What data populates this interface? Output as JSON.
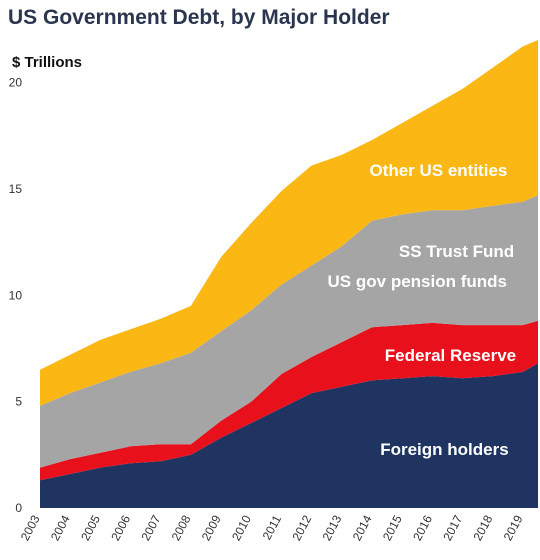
{
  "chart_data": {
    "type": "area",
    "stacked": true,
    "title": "US Government Debt, by Major Holder",
    "ylabel": "$ Trillions",
    "xlabel": "",
    "xlim": [
      2003,
      2019.5
    ],
    "ylim": [
      0,
      22
    ],
    "yticks": [
      0,
      5,
      10,
      15,
      20
    ],
    "xticks": [
      2003,
      2004,
      2005,
      2006,
      2007,
      2008,
      2009,
      2010,
      2011,
      2012,
      2013,
      2014,
      2015,
      2016,
      2017,
      2018,
      2019
    ],
    "grid": false,
    "legend": "none",
    "x": [
      2003,
      2004,
      2005,
      2006,
      2007,
      2008,
      2009,
      2010,
      2011,
      2012,
      2013,
      2014,
      2015,
      2016,
      2017,
      2018,
      2019,
      2019.5
    ],
    "series": [
      {
        "name": "Foreign holders",
        "color": "#1f3461",
        "values": [
          1.3,
          1.6,
          1.9,
          2.1,
          2.2,
          2.5,
          3.3,
          4.0,
          4.7,
          5.4,
          5.7,
          6.0,
          6.1,
          6.2,
          6.1,
          6.2,
          6.4,
          6.8
        ]
      },
      {
        "name": "Federal Reserve",
        "color": "#e8101a",
        "values": [
          0.6,
          0.7,
          0.7,
          0.8,
          0.8,
          0.5,
          0.8,
          1.0,
          1.6,
          1.7,
          2.1,
          2.5,
          2.5,
          2.5,
          2.5,
          2.4,
          2.2,
          2.0
        ]
      },
      {
        "name": "SS Trust Fund / US gov pension funds",
        "color": "#a5a5a5",
        "values": [
          2.9,
          3.1,
          3.3,
          3.5,
          3.8,
          4.3,
          4.2,
          4.3,
          4.2,
          4.3,
          4.5,
          5.0,
          5.2,
          5.3,
          5.4,
          5.6,
          5.8,
          5.9
        ]
      },
      {
        "name": "Other US entities",
        "color": "#fbb714",
        "values": [
          1.7,
          1.8,
          2.0,
          2.0,
          2.1,
          2.2,
          3.5,
          4.1,
          4.4,
          4.7,
          4.3,
          3.8,
          4.3,
          4.9,
          5.7,
          6.5,
          7.3,
          7.3
        ]
      }
    ],
    "labels": [
      {
        "text": "Other US entities",
        "x": 2016.2,
        "y": 15.6
      },
      {
        "text": "SS Trust Fund",
        "x": 2016.8,
        "y": 11.8
      },
      {
        "text": "US gov pension funds",
        "x": 2015.5,
        "y": 10.4
      },
      {
        "text": "Federal Reserve",
        "x": 2016.6,
        "y": 6.9
      },
      {
        "text": "Foreign holders",
        "x": 2016.4,
        "y": 2.5
      }
    ]
  }
}
